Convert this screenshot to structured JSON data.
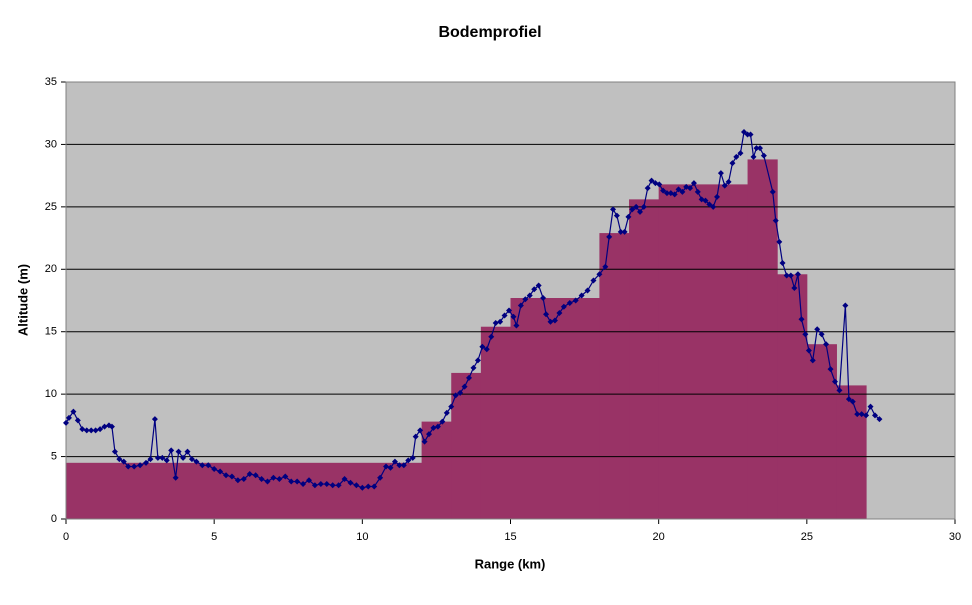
{
  "chart_data": {
    "type": "line",
    "title": "Bodemprofiel",
    "x_label": "Range (km)",
    "y_label": "Altitude (m)",
    "xlim": [
      0,
      30
    ],
    "xticks": [
      0,
      5,
      10,
      15,
      20,
      25,
      30
    ],
    "ylim": [
      0,
      35
    ],
    "yticks": [
      0,
      5,
      10,
      15,
      20,
      25,
      30,
      35
    ],
    "grid": true,
    "background": "#c0c0c0",
    "step_area": {
      "color": "#993366",
      "bins": [
        0,
        12,
        13,
        14,
        15,
        18,
        19,
        20,
        23,
        24,
        25,
        26,
        27
      ],
      "values": [
        4.5,
        7.8,
        11.7,
        15.4,
        17.7,
        22.9,
        25.6,
        26.8,
        28.8,
        19.6,
        14.0,
        10.7
      ]
    },
    "series": [
      {
        "color": "#000080",
        "x": [
          0,
          0.1,
          0.25,
          0.4,
          0.55,
          0.7,
          0.85,
          1.0,
          1.15,
          1.3,
          1.45,
          1.55,
          1.65,
          1.8,
          1.95,
          2.1,
          2.3,
          2.5,
          2.7,
          2.85,
          3.0,
          3.1,
          3.25,
          3.4,
          3.55,
          3.7,
          3.8,
          3.95,
          4.1,
          4.25,
          4.4,
          4.6,
          4.8,
          5.0,
          5.2,
          5.4,
          5.6,
          5.8,
          6.0,
          6.2,
          6.4,
          6.6,
          6.8,
          7.0,
          7.2,
          7.4,
          7.6,
          7.8,
          8.0,
          8.2,
          8.4,
          8.6,
          8.8,
          9.0,
          9.2,
          9.4,
          9.6,
          9.8,
          10.0,
          10.2,
          10.4,
          10.6,
          10.8,
          10.95,
          11.1,
          11.25,
          11.4,
          11.55,
          11.7,
          11.8,
          11.95,
          12.1,
          12.25,
          12.4,
          12.55,
          12.7,
          12.85,
          13.0,
          13.15,
          13.3,
          13.45,
          13.6,
          13.75,
          13.9,
          14.05,
          14.2,
          14.35,
          14.5,
          14.65,
          14.8,
          14.95,
          15.1,
          15.2,
          15.35,
          15.5,
          15.65,
          15.8,
          15.95,
          16.1,
          16.2,
          16.35,
          16.5,
          16.65,
          16.8,
          17.0,
          17.2,
          17.4,
          17.6,
          17.8,
          18.0,
          18.2,
          18.33,
          18.46,
          18.59,
          18.72,
          18.85,
          18.98,
          19.11,
          19.24,
          19.37,
          19.5,
          19.63,
          19.76,
          19.89,
          20.02,
          20.15,
          20.28,
          20.41,
          20.54,
          20.67,
          20.8,
          20.93,
          21.06,
          21.19,
          21.32,
          21.45,
          21.58,
          21.71,
          21.84,
          21.97,
          22.1,
          22.23,
          22.36,
          22.49,
          22.62,
          22.76,
          22.88,
          23.0,
          23.1,
          23.2,
          23.3,
          23.42,
          23.55,
          23.85,
          23.95,
          24.07,
          24.18,
          24.32,
          24.46,
          24.58,
          24.7,
          24.82,
          24.95,
          25.07,
          25.2,
          25.35,
          25.5,
          25.65,
          25.8,
          25.95,
          26.1,
          26.3,
          26.42,
          26.55,
          26.7,
          26.85,
          27.0,
          27.15,
          27.3,
          27.45
        ],
        "values": [
          7.7,
          8.1,
          8.6,
          7.9,
          7.2,
          7.1,
          7.1,
          7.1,
          7.2,
          7.4,
          7.5,
          7.4,
          5.4,
          4.8,
          4.6,
          4.2,
          4.2,
          4.3,
          4.5,
          4.8,
          8.0,
          4.9,
          4.9,
          4.7,
          5.5,
          3.3,
          5.4,
          4.9,
          5.4,
          4.8,
          4.6,
          4.3,
          4.3,
          4.0,
          3.8,
          3.5,
          3.4,
          3.1,
          3.2,
          3.6,
          3.5,
          3.2,
          3.0,
          3.3,
          3.2,
          3.4,
          3.0,
          3.0,
          2.8,
          3.1,
          2.7,
          2.8,
          2.8,
          2.7,
          2.7,
          3.2,
          2.9,
          2.7,
          2.5,
          2.6,
          2.6,
          3.3,
          4.2,
          4.1,
          4.6,
          4.3,
          4.3,
          4.7,
          4.9,
          6.6,
          7.1,
          6.2,
          6.8,
          7.3,
          7.4,
          7.8,
          8.5,
          9.0,
          9.9,
          10.1,
          10.6,
          11.3,
          12.1,
          12.7,
          13.8,
          13.6,
          14.6,
          15.7,
          15.8,
          16.3,
          16.7,
          16.2,
          15.5,
          17.1,
          17.6,
          17.9,
          18.4,
          18.7,
          17.7,
          16.4,
          15.8,
          15.9,
          16.5,
          17.0,
          17.3,
          17.5,
          17.9,
          18.3,
          19.1,
          19.6,
          20.2,
          22.6,
          24.8,
          24.3,
          23.0,
          23.0,
          24.2,
          24.8,
          25.0,
          24.6,
          25.0,
          26.5,
          27.1,
          26.9,
          26.8,
          26.3,
          26.1,
          26.1,
          26.0,
          26.4,
          26.2,
          26.6,
          26.5,
          26.9,
          26.2,
          25.6,
          25.5,
          25.2,
          25.0,
          25.8,
          27.7,
          26.7,
          27.0,
          28.5,
          29.0,
          29.3,
          31.0,
          30.8,
          30.8,
          29.0,
          29.7,
          29.7,
          29.1,
          26.2,
          23.9,
          22.2,
          20.5,
          19.5,
          19.5,
          18.5,
          19.6,
          16.0,
          14.8,
          13.5,
          12.7,
          15.2,
          14.8,
          14.0,
          12.0,
          11.0,
          10.3,
          17.1,
          9.6,
          9.4,
          8.4,
          8.4,
          8.3,
          9.0,
          8.3,
          8.0
        ]
      }
    ]
  }
}
